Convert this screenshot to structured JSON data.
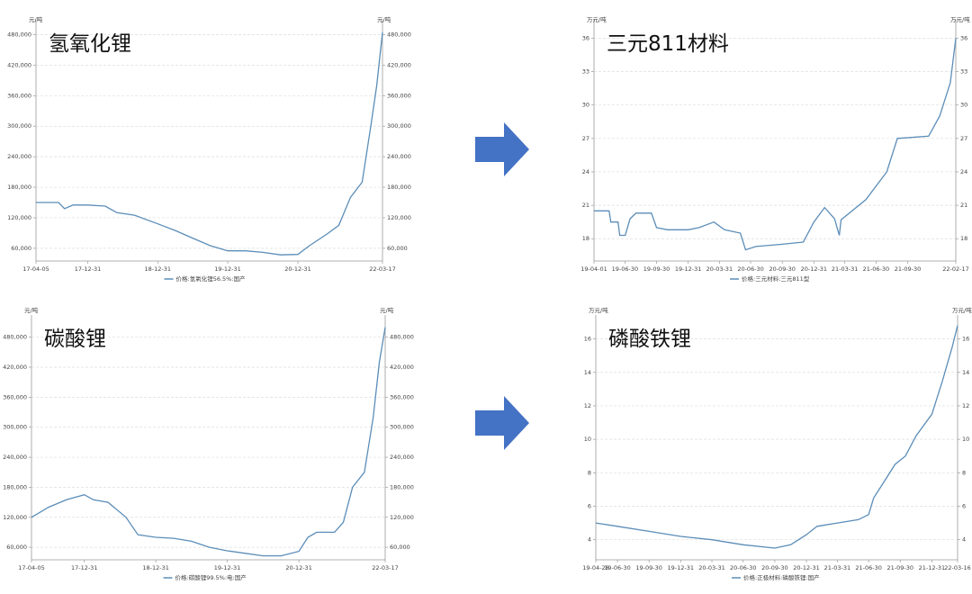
{
  "chart_data": [
    {
      "type": "line",
      "title": "氢氧化锂",
      "y_unit": "元/吨",
      "grid": true,
      "xlim": [
        "17-04-05",
        "22-03-17"
      ],
      "xticks": [
        "17-04-05",
        "17-12-31",
        "18-12-31",
        "19-12-31",
        "20-12-31",
        "22-03-17"
      ],
      "ylim": [
        35000,
        495000
      ],
      "yticks": [
        {
          "value": 60000,
          "label": "60,000"
        },
        {
          "value": 120000,
          "label": "120,000"
        },
        {
          "value": 180000,
          "label": "180,000"
        },
        {
          "value": 240000,
          "label": "240,000"
        },
        {
          "value": 300000,
          "label": "300,000"
        },
        {
          "value": 360000,
          "label": "360,000"
        },
        {
          "value": 420000,
          "label": "420,000"
        },
        {
          "value": 480000,
          "label": "480,000"
        }
      ],
      "x": [
        "17-04-05",
        "17-08-01",
        "17-09-01",
        "17-10-15",
        "17-12-31",
        "18-04-01",
        "18-06-01",
        "18-09-01",
        "18-12-31",
        "19-04-01",
        "19-07-01",
        "19-10-01",
        "19-12-31",
        "20-04-01",
        "20-07-01",
        "20-10-01",
        "20-12-31",
        "21-03-01",
        "21-06-01",
        "21-08-01",
        "21-10-01",
        "21-12-01",
        "22-01-15",
        "22-02-15",
        "22-03-17"
      ],
      "series": [
        {
          "name": "价格:氢氧化锂56.5%:国产",
          "color": "#5b8db8",
          "values": [
            150000,
            150000,
            138000,
            145000,
            145000,
            143000,
            130000,
            125000,
            108000,
            95000,
            80000,
            65000,
            55000,
            55000,
            52000,
            47000,
            48000,
            65000,
            88000,
            105000,
            160000,
            190000,
            300000,
            380000,
            485000
          ]
        }
      ]
    },
    {
      "type": "line",
      "title": "三元811材料",
      "y_unit": "万元/吨",
      "grid": true,
      "xlim": [
        "19-04-01",
        "22-02-17"
      ],
      "xticks": [
        "19-04-01",
        "19-06-30",
        "19-09-30",
        "19-12-31",
        "20-03-31",
        "20-06-30",
        "20-09-30",
        "20-12-31",
        "21-03-31",
        "21-06-30",
        "21-09-30",
        "22-02-17"
      ],
      "ylim": [
        16,
        37
      ],
      "yticks": [
        18,
        21,
        24,
        27,
        30,
        33,
        36
      ],
      "x": [
        "19-04-01",
        "19-05-15",
        "19-05-20",
        "19-06-10",
        "19-06-15",
        "19-07-01",
        "19-07-15",
        "19-08-01",
        "19-09-15",
        "19-09-30",
        "19-11-01",
        "19-12-31",
        "20-02-01",
        "20-03-15",
        "20-04-15",
        "20-05-31",
        "20-06-15",
        "20-07-15",
        "20-09-30",
        "20-11-30",
        "20-12-31",
        "21-01-31",
        "21-03-01",
        "21-03-15",
        "21-03-20",
        "21-05-31",
        "21-07-31",
        "21-08-31",
        "21-11-30",
        "22-01-01",
        "22-02-01",
        "22-02-17"
      ],
      "series": [
        {
          "name": "价格:三元材料:三元811型",
          "color": "#5b8db8",
          "values": [
            20.5,
            20.5,
            19.5,
            19.5,
            18.3,
            18.3,
            19.8,
            20.3,
            20.3,
            19.0,
            18.8,
            18.8,
            19.0,
            19.5,
            18.8,
            18.5,
            17.0,
            17.3,
            17.5,
            17.7,
            19.5,
            20.8,
            19.8,
            18.3,
            19.7,
            21.5,
            24,
            27,
            27.2,
            29,
            32,
            36
          ]
        }
      ]
    },
    {
      "type": "line",
      "title": "碳酸锂",
      "y_unit": "元/吨",
      "grid": true,
      "xlim": [
        "17-04-05",
        "22-03-17"
      ],
      "xticks": [
        "17-04-05",
        "17-12-31",
        "18-12-31",
        "19-12-31",
        "20-12-31",
        "22-03-17"
      ],
      "ylim": [
        35000,
        510000
      ],
      "yticks": [
        {
          "value": 60000,
          "label": "60,000"
        },
        {
          "value": 120000,
          "label": "120,000"
        },
        {
          "value": 180000,
          "label": "180,000"
        },
        {
          "value": 240000,
          "label": "240,000"
        },
        {
          "value": 300000,
          "label": "300,000"
        },
        {
          "value": 360000,
          "label": "360,000"
        },
        {
          "value": 420000,
          "label": "420,000"
        },
        {
          "value": 480000,
          "label": "480,000"
        }
      ],
      "x": [
        "17-04-05",
        "17-07-01",
        "17-10-01",
        "17-12-31",
        "18-02-15",
        "18-05-01",
        "18-08-01",
        "18-10-01",
        "18-12-31",
        "19-04-01",
        "19-07-01",
        "19-10-01",
        "19-12-31",
        "20-04-01",
        "20-07-01",
        "20-10-01",
        "20-12-31",
        "21-02-15",
        "21-04-01",
        "21-07-01",
        "21-08-15",
        "21-10-01",
        "21-12-01",
        "22-01-15",
        "22-02-15",
        "22-03-17"
      ],
      "series": [
        {
          "name": "价格:碳酸锂99.5%:电:国产",
          "color": "#5b8db8",
          "values": [
            120000,
            140000,
            155000,
            165000,
            155000,
            150000,
            120000,
            85000,
            80000,
            78000,
            72000,
            60000,
            53000,
            48000,
            43000,
            43000,
            52000,
            80000,
            90000,
            90000,
            110000,
            180000,
            210000,
            320000,
            430000,
            500000
          ]
        }
      ]
    },
    {
      "type": "line",
      "title": "磷酸铁锂",
      "y_unit": "万元/吨",
      "grid": true,
      "xlim": [
        "19-04-28",
        "22-03-16"
      ],
      "xticks": [
        "19-04-28",
        "19-06-30",
        "19-09-30",
        "19-12-31",
        "20-03-31",
        "20-06-30",
        "20-09-30",
        "20-12-31",
        "21-03-31",
        "21-06-30",
        "21-09-30",
        "21-12-31",
        "22-03-16"
      ],
      "ylim": [
        2.8,
        17
      ],
      "yticks": [
        4,
        6,
        8,
        10,
        12,
        14,
        16
      ],
      "x": [
        "19-04-28",
        "19-06-30",
        "19-09-30",
        "19-12-31",
        "20-03-31",
        "20-06-30",
        "20-09-30",
        "20-11-15",
        "20-12-31",
        "21-01-31",
        "21-03-31",
        "21-05-31",
        "21-06-30",
        "21-07-15",
        "21-08-15",
        "21-09-15",
        "21-10-15",
        "21-11-15",
        "21-12-31",
        "22-01-31",
        "22-02-28",
        "22-03-16"
      ],
      "series": [
        {
          "name": "价格:正极材料:磷酸铁锂:国产",
          "color": "#5b8db8",
          "values": [
            5.0,
            4.8,
            4.5,
            4.2,
            4.0,
            3.7,
            3.5,
            3.7,
            4.3,
            4.8,
            5.0,
            5.2,
            5.5,
            6.5,
            7.5,
            8.5,
            9.0,
            10.2,
            11.5,
            13.5,
            15.5,
            16.8
          ]
        }
      ]
    }
  ]
}
